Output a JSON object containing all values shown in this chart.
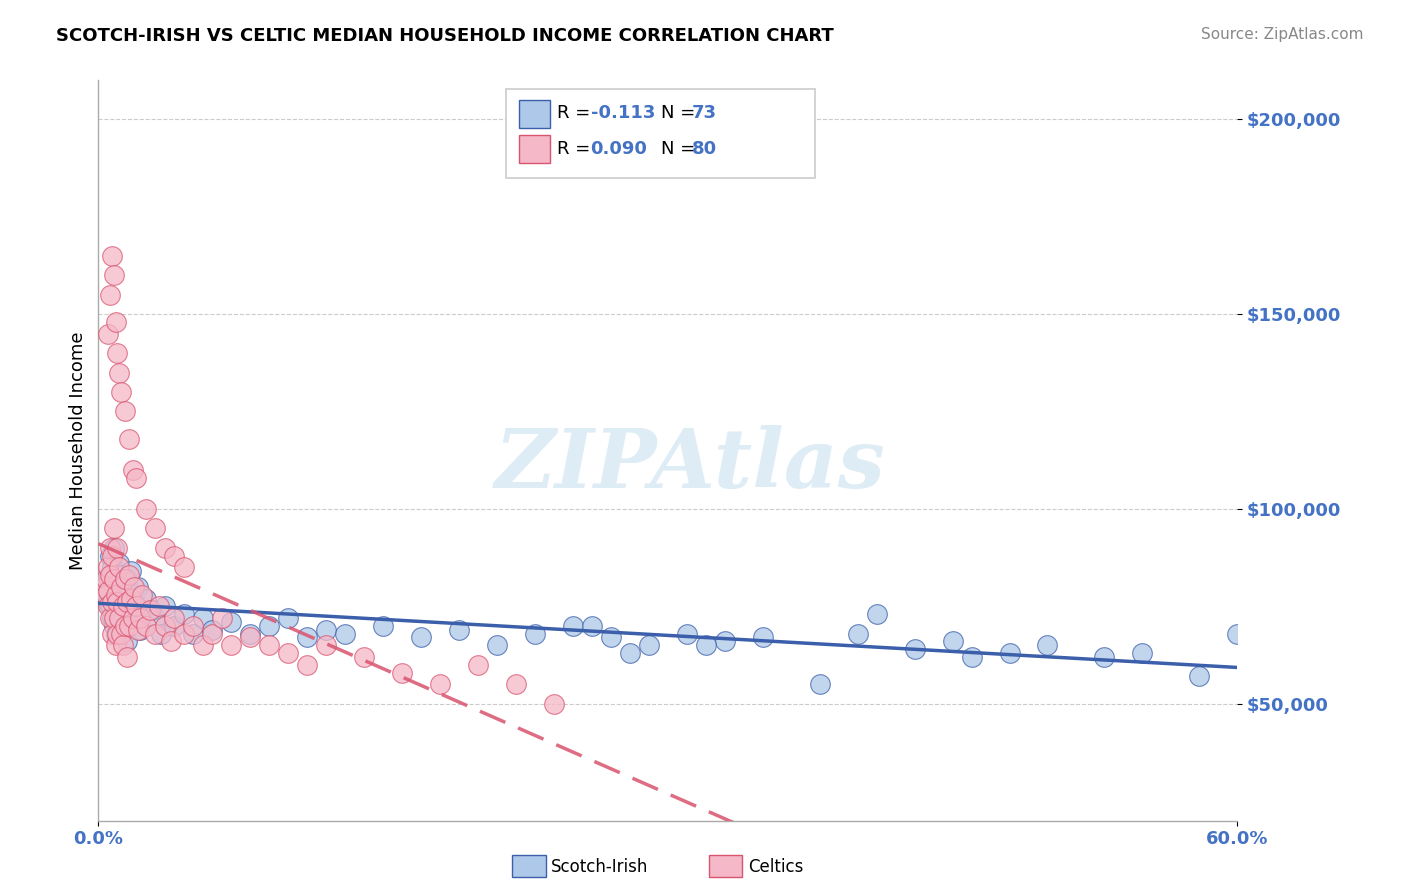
{
  "title": "SCOTCH-IRISH VS CELTIC MEDIAN HOUSEHOLD INCOME CORRELATION CHART",
  "source": "Source: ZipAtlas.com",
  "ylabel": "Median Household Income",
  "xlim": [
    0.0,
    0.6
  ],
  "ylim": [
    20000,
    210000
  ],
  "background": "#ffffff",
  "grid_color": "#cccccc",
  "scotch_irish_color": "#adc8e8",
  "celtics_color": "#f5b8c8",
  "trendline_scotch_color": "#3b5faa",
  "trendline_celtics_color": "#d9546e",
  "R1": "-0.113",
  "N1": "73",
  "R2": "0.090",
  "N2": "80",
  "stat_color": "#4472c4",
  "watermark": "ZIPAtlas",
  "scotch_irish_x": [
    0.003,
    0.004,
    0.005,
    0.005,
    0.006,
    0.006,
    0.007,
    0.007,
    0.008,
    0.008,
    0.009,
    0.009,
    0.01,
    0.01,
    0.011,
    0.011,
    0.012,
    0.012,
    0.013,
    0.013,
    0.014,
    0.015,
    0.015,
    0.016,
    0.017,
    0.018,
    0.019,
    0.02,
    0.021,
    0.022,
    0.025,
    0.028,
    0.03,
    0.033,
    0.035,
    0.04,
    0.045,
    0.05,
    0.055,
    0.06,
    0.07,
    0.08,
    0.09,
    0.1,
    0.11,
    0.12,
    0.13,
    0.15,
    0.17,
    0.19,
    0.21,
    0.23,
    0.25,
    0.27,
    0.29,
    0.31,
    0.33,
    0.35,
    0.38,
    0.4,
    0.43,
    0.45,
    0.48,
    0.5,
    0.53,
    0.55,
    0.58,
    0.6,
    0.32,
    0.26,
    0.41,
    0.28,
    0.46
  ],
  "scotch_irish_y": [
    78000,
    80000,
    82000,
    76000,
    88000,
    75000,
    85000,
    72000,
    90000,
    70000,
    84000,
    68000,
    79000,
    73000,
    86000,
    71000,
    83000,
    69000,
    80000,
    74000,
    77000,
    82000,
    66000,
    79000,
    84000,
    72000,
    78000,
    75000,
    80000,
    69000,
    77000,
    74000,
    72000,
    68000,
    75000,
    70000,
    73000,
    68000,
    72000,
    69000,
    71000,
    68000,
    70000,
    72000,
    67000,
    69000,
    68000,
    70000,
    67000,
    69000,
    65000,
    68000,
    70000,
    67000,
    65000,
    68000,
    66000,
    67000,
    55000,
    68000,
    64000,
    66000,
    63000,
    65000,
    62000,
    63000,
    57000,
    68000,
    65000,
    70000,
    73000,
    63000,
    62000
  ],
  "celtics_x": [
    0.003,
    0.004,
    0.004,
    0.005,
    0.005,
    0.005,
    0.006,
    0.006,
    0.006,
    0.007,
    0.007,
    0.007,
    0.008,
    0.008,
    0.008,
    0.009,
    0.009,
    0.01,
    0.01,
    0.01,
    0.011,
    0.011,
    0.012,
    0.012,
    0.013,
    0.013,
    0.014,
    0.014,
    0.015,
    0.015,
    0.016,
    0.016,
    0.017,
    0.018,
    0.019,
    0.02,
    0.021,
    0.022,
    0.023,
    0.025,
    0.027,
    0.03,
    0.032,
    0.035,
    0.038,
    0.04,
    0.045,
    0.05,
    0.055,
    0.06,
    0.065,
    0.07,
    0.08,
    0.09,
    0.1,
    0.11,
    0.12,
    0.14,
    0.16,
    0.18,
    0.2,
    0.22,
    0.24,
    0.005,
    0.006,
    0.007,
    0.008,
    0.009,
    0.01,
    0.011,
    0.012,
    0.014,
    0.016,
    0.018,
    0.02,
    0.025,
    0.03,
    0.035,
    0.04,
    0.045
  ],
  "celtics_y": [
    80000,
    82000,
    78000,
    85000,
    79000,
    75000,
    90000,
    83000,
    72000,
    88000,
    76000,
    68000,
    95000,
    82000,
    72000,
    78000,
    65000,
    90000,
    76000,
    68000,
    85000,
    72000,
    80000,
    68000,
    75000,
    65000,
    82000,
    70000,
    76000,
    62000,
    83000,
    70000,
    77000,
    72000,
    80000,
    75000,
    69000,
    72000,
    78000,
    70000,
    74000,
    68000,
    75000,
    70000,
    66000,
    72000,
    68000,
    70000,
    65000,
    68000,
    72000,
    65000,
    67000,
    65000,
    63000,
    60000,
    65000,
    62000,
    58000,
    55000,
    60000,
    55000,
    50000,
    145000,
    155000,
    165000,
    160000,
    148000,
    140000,
    135000,
    130000,
    125000,
    118000,
    110000,
    108000,
    100000,
    95000,
    90000,
    88000,
    85000
  ]
}
